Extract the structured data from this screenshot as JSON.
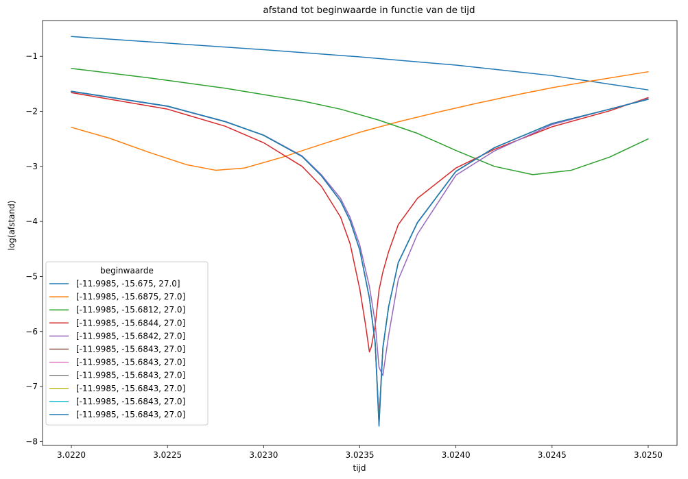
{
  "chart_data": {
    "type": "line",
    "title": "afstand tot beginwaarde in functie van de tijd",
    "xlabel": "tijd",
    "ylabel": "log(afstand)",
    "xlim": [
      3.02185,
      3.02515
    ],
    "ylim": [
      -8.07,
      -0.35
    ],
    "xticks": [
      3.022,
      3.0225,
      3.023,
      3.0235,
      3.024,
      3.0245,
      3.025
    ],
    "xtick_labels": [
      "3.0220",
      "3.0225",
      "3.0230",
      "3.0235",
      "3.0240",
      "3.0245",
      "3.0250"
    ],
    "yticks": [
      -8,
      -7,
      -6,
      -5,
      -4,
      -3,
      -2,
      -1
    ],
    "ytick_labels": [
      "−8",
      "−7",
      "−6",
      "−5",
      "−4",
      "−3",
      "−2",
      "−1"
    ],
    "grid": false,
    "legend": {
      "title": "beginwaarde",
      "placement": "lower-left"
    },
    "series": [
      {
        "name": "[-11.9985, -15.675, 27.0]",
        "color": "#1f77b4",
        "x": [
          3.022,
          3.0225,
          3.023,
          3.0235,
          3.024,
          3.0245,
          3.025
        ],
        "y": [
          -0.64,
          -0.76,
          -0.88,
          -1.01,
          -1.16,
          -1.35,
          -1.61
        ]
      },
      {
        "name": "[-11.9985, -15.6875, 27.0]",
        "color": "#ff7f0e",
        "x": [
          3.022,
          3.0222,
          3.0224,
          3.0226,
          3.02275,
          3.0229,
          3.0231,
          3.0233,
          3.0235,
          3.0237,
          3.0239,
          3.0241,
          3.0243,
          3.0245,
          3.0247,
          3.025
        ],
        "y": [
          -2.29,
          -2.49,
          -2.74,
          -2.97,
          -3.07,
          -3.03,
          -2.83,
          -2.6,
          -2.38,
          -2.19,
          -2.02,
          -1.86,
          -1.71,
          -1.57,
          -1.45,
          -1.28
        ]
      },
      {
        "name": "[-11.9985, -15.6812, 27.0]",
        "color": "#2ca02c",
        "x": [
          3.022,
          3.0224,
          3.0228,
          3.0232,
          3.0234,
          3.0236,
          3.0238,
          3.024,
          3.0242,
          3.0244,
          3.0246,
          3.0248,
          3.025
        ],
        "y": [
          -1.22,
          -1.39,
          -1.58,
          -1.81,
          -1.96,
          -2.16,
          -2.4,
          -2.71,
          -3.0,
          -3.15,
          -3.07,
          -2.83,
          -2.5
        ]
      },
      {
        "name": "[-11.9985, -15.6844, 27.0]",
        "color": "#d62728",
        "x": [
          3.022,
          3.0225,
          3.0228,
          3.023,
          3.0232,
          3.0233,
          3.0234,
          3.02345,
          3.0235,
          3.02353,
          3.02355,
          3.02356,
          3.02358,
          3.0236,
          3.02362,
          3.02365,
          3.0237,
          3.0238,
          3.024,
          3.0242,
          3.0245,
          3.0248,
          3.025
        ],
        "y": [
          -1.66,
          -1.96,
          -2.27,
          -2.57,
          -3.0,
          -3.36,
          -3.92,
          -4.41,
          -5.23,
          -5.88,
          -6.37,
          -6.28,
          -5.9,
          -5.25,
          -4.92,
          -4.55,
          -4.06,
          -3.58,
          -3.03,
          -2.69,
          -2.28,
          -1.99,
          -1.75
        ]
      },
      {
        "name": "[-11.9985, -15.6842, 27.0]",
        "color": "#9467bd",
        "x": [
          3.022,
          3.0225,
          3.0228,
          3.023,
          3.0232,
          3.0233,
          3.0234,
          3.02345,
          3.0235,
          3.02355,
          3.02358,
          3.0236,
          3.02362,
          3.02365,
          3.0237,
          3.0238,
          3.024,
          3.0242,
          3.0245,
          3.0248,
          3.025
        ],
        "y": [
          -1.64,
          -1.91,
          -2.19,
          -2.43,
          -2.81,
          -3.15,
          -3.58,
          -3.93,
          -4.43,
          -5.18,
          -5.83,
          -6.65,
          -6.8,
          -6.07,
          -5.06,
          -4.23,
          -3.16,
          -2.72,
          -2.24,
          -1.96,
          -1.77
        ]
      },
      {
        "name": "[-11.9985, -15.6843, 27.0]",
        "color": "#8c564b",
        "x": [
          3.022,
          3.0225,
          3.0228,
          3.023,
          3.0232,
          3.0233,
          3.0234,
          3.02345,
          3.0235,
          3.02355,
          3.02358,
          3.0236,
          3.02362,
          3.02365,
          3.0237,
          3.0238,
          3.024,
          3.0242,
          3.0245,
          3.0248,
          3.025
        ],
        "y": [
          -1.635,
          -1.905,
          -2.185,
          -2.435,
          -2.82,
          -3.17,
          -3.63,
          -3.99,
          -4.52,
          -5.39,
          -6.2,
          -7.55,
          -6.3,
          -5.55,
          -4.75,
          -4.02,
          -3.09,
          -2.66,
          -2.22,
          -1.96,
          -1.78
        ]
      },
      {
        "name": "[-11.9985, -15.6843, 27.0]",
        "color": "#e377c2",
        "x": [
          3.022,
          3.0225,
          3.0228,
          3.023,
          3.0232,
          3.0233,
          3.0234,
          3.02345,
          3.0235,
          3.02355,
          3.02358,
          3.0236,
          3.02362,
          3.02365,
          3.0237,
          3.0238,
          3.024,
          3.0242,
          3.0245,
          3.0248,
          3.025
        ],
        "y": [
          -1.635,
          -1.905,
          -2.185,
          -2.435,
          -2.82,
          -3.17,
          -3.63,
          -3.99,
          -4.52,
          -5.39,
          -6.2,
          -7.6,
          -6.3,
          -5.55,
          -4.75,
          -4.02,
          -3.09,
          -2.66,
          -2.22,
          -1.96,
          -1.78
        ]
      },
      {
        "name": "[-11.9985, -15.6843, 27.0]",
        "color": "#7f7f7f",
        "x": [
          3.022,
          3.0225,
          3.0228,
          3.023,
          3.0232,
          3.0233,
          3.0234,
          3.02345,
          3.0235,
          3.02355,
          3.02358,
          3.0236,
          3.02362,
          3.02365,
          3.0237,
          3.0238,
          3.024,
          3.0242,
          3.0245,
          3.0248,
          3.025
        ],
        "y": [
          -1.635,
          -1.905,
          -2.185,
          -2.435,
          -2.82,
          -3.17,
          -3.63,
          -3.99,
          -4.52,
          -5.39,
          -6.2,
          -7.65,
          -6.3,
          -5.55,
          -4.75,
          -4.02,
          -3.09,
          -2.66,
          -2.22,
          -1.96,
          -1.78
        ]
      },
      {
        "name": "[-11.9985, -15.6843, 27.0]",
        "color": "#bcbd22",
        "x": [
          3.022,
          3.0225,
          3.0228,
          3.023,
          3.0232,
          3.0233,
          3.0234,
          3.02345,
          3.0235,
          3.02355,
          3.02358,
          3.0236,
          3.02362,
          3.02365,
          3.0237,
          3.0238,
          3.024,
          3.0242,
          3.0245,
          3.0248,
          3.025
        ],
        "y": [
          -1.635,
          -1.905,
          -2.185,
          -2.435,
          -2.82,
          -3.17,
          -3.63,
          -3.99,
          -4.52,
          -5.39,
          -6.2,
          -7.68,
          -6.3,
          -5.55,
          -4.75,
          -4.02,
          -3.09,
          -2.66,
          -2.22,
          -1.96,
          -1.78
        ]
      },
      {
        "name": "[-11.9985, -15.6843, 27.0]",
        "color": "#17becf",
        "x": [
          3.022,
          3.0225,
          3.0228,
          3.023,
          3.0232,
          3.0233,
          3.0234,
          3.02345,
          3.0235,
          3.02355,
          3.02358,
          3.0236,
          3.02362,
          3.02365,
          3.0237,
          3.0238,
          3.024,
          3.0242,
          3.0245,
          3.0248,
          3.025
        ],
        "y": [
          -1.635,
          -1.905,
          -2.185,
          -2.435,
          -2.82,
          -3.17,
          -3.63,
          -3.99,
          -4.52,
          -5.39,
          -6.2,
          -7.7,
          -6.3,
          -5.55,
          -4.75,
          -4.02,
          -3.09,
          -2.66,
          -2.22,
          -1.96,
          -1.78
        ]
      },
      {
        "name": "[-11.9985, -15.6843, 27.0]",
        "color": "#1f77b4",
        "x": [
          3.022,
          3.0225,
          3.0228,
          3.023,
          3.0232,
          3.0233,
          3.0234,
          3.02345,
          3.0235,
          3.02355,
          3.02358,
          3.0236,
          3.02362,
          3.02365,
          3.0237,
          3.0238,
          3.024,
          3.0242,
          3.0245,
          3.0248,
          3.025
        ],
        "y": [
          -1.635,
          -1.905,
          -2.185,
          -2.435,
          -2.82,
          -3.17,
          -3.63,
          -3.99,
          -4.52,
          -5.39,
          -6.2,
          -7.72,
          -6.3,
          -5.55,
          -4.75,
          -4.02,
          -3.09,
          -2.66,
          -2.22,
          -1.96,
          -1.78
        ]
      }
    ]
  }
}
